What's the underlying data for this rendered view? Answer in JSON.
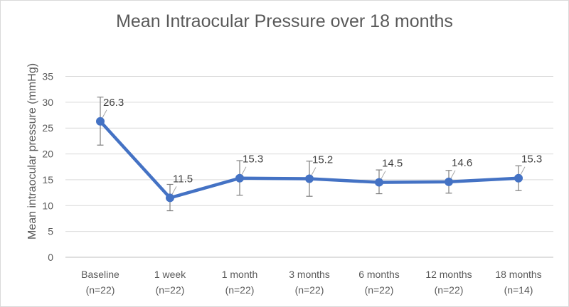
{
  "chart_data": {
    "type": "line",
    "title": "Mean Intraocular Pressure over 18 months",
    "xlabel": "",
    "ylabel": "Mean intraocular pressure (mmHg)",
    "ylim": [
      0,
      35
    ],
    "yticks": [
      0,
      5,
      10,
      15,
      20,
      25,
      30,
      35
    ],
    "grid": true,
    "legend": "none",
    "line_color": "#4472c4",
    "categories": [
      [
        "Baseline",
        "(n=22)"
      ],
      [
        "1 week",
        "(n=22)"
      ],
      [
        "1 month",
        "(n=22)"
      ],
      [
        "3 months",
        "(n=22)"
      ],
      [
        "6 months",
        "(n=22)"
      ],
      [
        "12 months",
        "(n=22)"
      ],
      [
        "18 months",
        "(n=14)"
      ]
    ],
    "values": [
      26.3,
      11.5,
      15.3,
      15.2,
      14.5,
      14.6,
      15.3
    ],
    "data_labels": [
      "26.3",
      "11.5",
      "15.3",
      "15.2",
      "14.5",
      "14.6",
      "15.3"
    ],
    "error_bars": [
      {
        "low": 21.7,
        "high": 31.0
      },
      {
        "low": 9.0,
        "high": 14.1
      },
      {
        "low": 12.0,
        "high": 18.7
      },
      {
        "low": 11.8,
        "high": 18.6
      },
      {
        "low": 12.3,
        "high": 16.9
      },
      {
        "low": 12.4,
        "high": 16.8
      },
      {
        "low": 12.9,
        "high": 17.7
      }
    ]
  }
}
